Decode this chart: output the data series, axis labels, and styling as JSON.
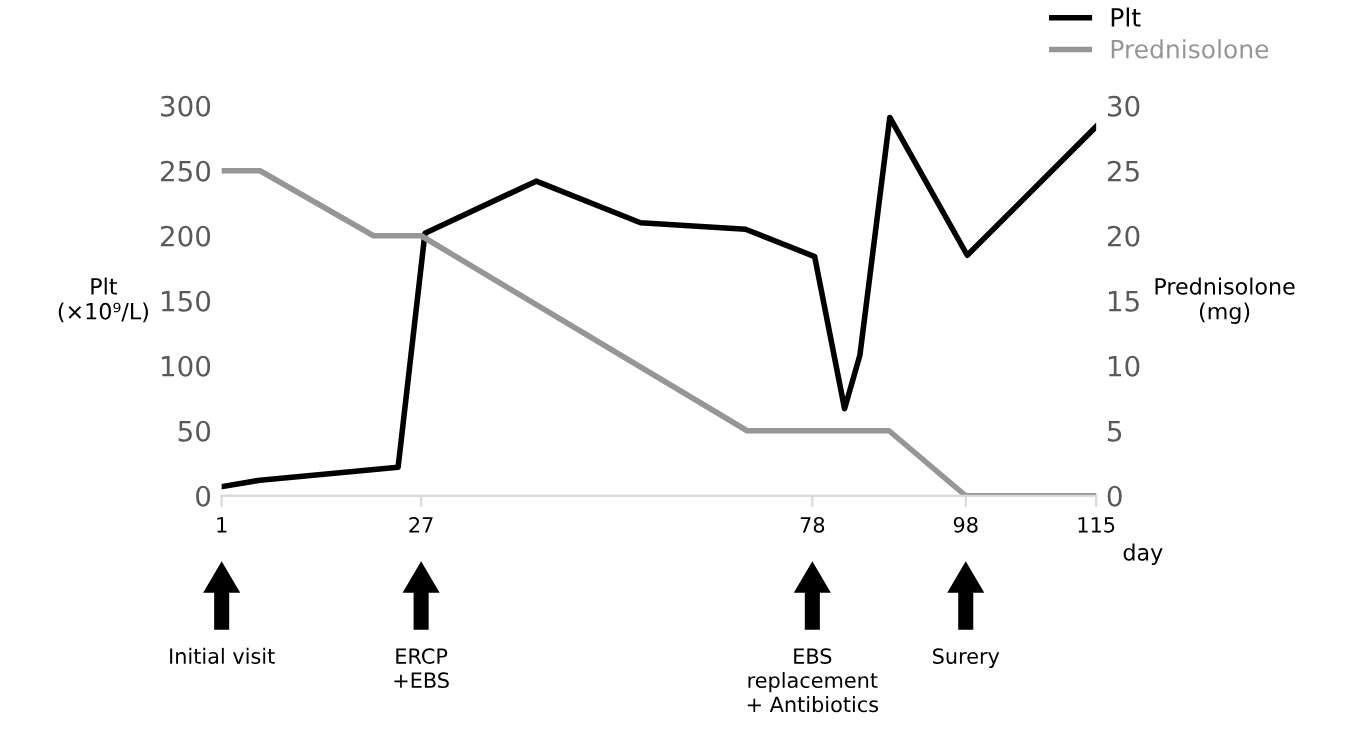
{
  "chart_data": {
    "type": "line",
    "xlabel": "day",
    "ylabel": "Plt\n(×10⁹/L)",
    "y2label": "Prednisolone\n(mg)",
    "xlim": [
      1,
      115
    ],
    "xticks": [
      1,
      27,
      78,
      98,
      115
    ],
    "ylim": [
      0,
      300
    ],
    "yticks": [
      0,
      50,
      100,
      150,
      200,
      250,
      300
    ],
    "y2lim": [
      0,
      30
    ],
    "y2ticks": [
      0,
      5,
      10,
      15,
      20,
      25,
      30
    ],
    "legend": "top right",
    "grid": false,
    "marker": "none",
    "line_style": "solid",
    "series": [
      {
        "name": "Plt",
        "color": "#000000",
        "x": [
          1,
          6,
          24,
          27.5,
          42,
          55.6,
          69.3,
          78.3,
          82.2,
          84.2,
          88.1,
          98.2,
          115
        ],
        "values": [
          7,
          12,
          22,
          202,
          242,
          210,
          205,
          184,
          67,
          108,
          291,
          185,
          284
        ]
      },
      {
        "name": "Prednisolone",
        "color": "#969696",
        "axis": "y2",
        "x": [
          1,
          6,
          20.8,
          27,
          69.5,
          88,
          98,
          115
        ],
        "values": [
          25,
          25,
          20,
          20,
          5,
          5,
          0,
          0
        ]
      }
    ],
    "annotations": [
      "Initial visit",
      "ERCP\n+EBS",
      "EBS\nreplacement\n+ Antibiotics",
      "Surery"
    ]
  }
}
